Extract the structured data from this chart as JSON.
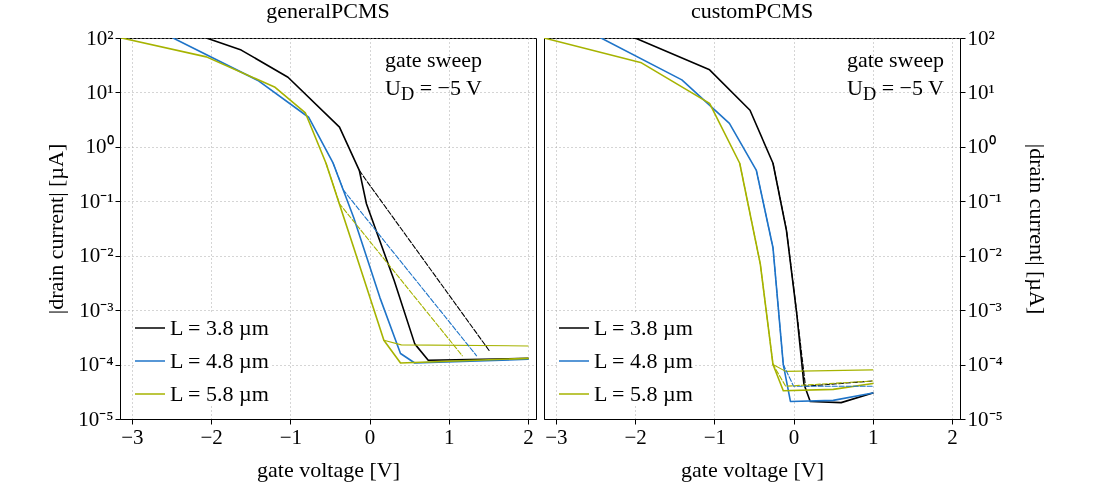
{
  "chart_data": [
    {
      "type": "line",
      "title": "generalPCMS",
      "xlabel": "gate voltage [V]",
      "ylabel": "|drain current| [µA]",
      "log": true,
      "grid": true,
      "legend": "bottom left",
      "xlim": [
        -3.15,
        2.1
      ],
      "ylim": [
        1e-05,
        100
      ],
      "xticks": [
        -3,
        -2,
        -1,
        0,
        1,
        2
      ],
      "yticks": [
        {
          "value": 1e-05,
          "label": "10⁻⁵"
        },
        {
          "value": 0.0001,
          "label": "10⁻⁴"
        },
        {
          "value": 0.001,
          "label": "10⁻³"
        },
        {
          "value": 0.01,
          "label": "10⁻²"
        },
        {
          "value": 0.1,
          "label": "10⁻¹"
        },
        {
          "value": 1,
          "label": "10⁰"
        },
        {
          "value": 10,
          "label": "10¹"
        },
        {
          "value": 100,
          "label": "10²"
        }
      ],
      "annotations": [
        "gate sweep",
        "U$_{D}$ = −5 V"
      ],
      "series": [
        {
          "name": "L = 3.8 µm",
          "color": "#000000",
          "line_style": "solid",
          "x": [
            -2.06,
            -1.62,
            -1.03,
            -0.38,
            -0.13,
            -0.04,
            0.31,
            0.57,
            0.74,
            2
          ],
          "values": [
            100,
            60,
            19,
            2.3,
            0.37,
            0.09,
            0.0035,
            0.00024,
            0.00012,
            0.00013
          ]
        },
        {
          "name": "L = 4.8 µm",
          "color": "#1f74c8",
          "line_style": "solid",
          "x": [
            -2.48,
            -1.41,
            -0.77,
            -0.46,
            -0.2,
            0.13,
            0.39,
            0.57,
            2
          ],
          "values": [
            100,
            16.6,
            3.5,
            0.5,
            0.05,
            0.0017,
            0.00016,
            0.000107,
            0.000125
          ]
        },
        {
          "name": "L = 5.8 µm",
          "color": "#a6b300",
          "line_style": "solid",
          "x": [
            -3.13,
            -2.06,
            -1.2,
            -0.81,
            -0.55,
            -0.2,
            0.18,
            0.39,
            2
          ],
          "values": [
            100,
            45,
            12.6,
            4.2,
            0.5,
            0.014,
            0.00028,
            0.000107,
            0.00013
          ]
        },
        {
          "color": "#a6b300",
          "line_style": "solid",
          "x": [
            0.18,
            0.4,
            2
          ],
          "values": [
            0.00028,
            0.00023,
            0.00022
          ]
        },
        {
          "color": "#000000",
          "line_style": "dashed",
          "x": [
            -0.13,
            -0.04,
            1.51
          ],
          "values": [
            0.37,
            0.24,
            0.00018
          ]
        },
        {
          "color": "#1f74c8",
          "line_style": "dashed",
          "x": [
            -0.46,
            -0.33,
            1.35
          ],
          "values": [
            0.5,
            0.16,
            0.000145
          ]
        },
        {
          "color": "#a6b300",
          "line_style": "dashed",
          "x": [
            -0.55,
            -0.38,
            1.17
          ],
          "values": [
            0.5,
            0.09,
            0.000145
          ]
        }
      ]
    },
    {
      "type": "line",
      "title": "customPCMS",
      "xlabel": "gate voltage [V]",
      "ylabel": "|drain current| [µA]",
      "log": true,
      "grid": true,
      "legend": "bottom left",
      "xlim": [
        -3.15,
        2.1
      ],
      "ylim": [
        1e-05,
        100
      ],
      "xticks": [
        -3,
        -2,
        -1,
        0,
        1,
        2
      ],
      "yticks": [
        {
          "value": 1e-05,
          "label": "10⁻⁵"
        },
        {
          "value": 0.0001,
          "label": "10⁻⁴"
        },
        {
          "value": 0.001,
          "label": "10⁻³"
        },
        {
          "value": 0.01,
          "label": "10⁻²"
        },
        {
          "value": 0.1,
          "label": "10⁻¹"
        },
        {
          "value": 1,
          "label": "10⁰"
        },
        {
          "value": 10,
          "label": "10¹"
        },
        {
          "value": 100,
          "label": "10²"
        }
      ],
      "annotations": [
        "gate sweep",
        "U$_{D}$ = −5 V"
      ],
      "series": [
        {
          "name": "L = 3.8 µm",
          "color": "#000000",
          "line_style": "solid",
          "x": [
            -2,
            -1.06,
            -0.55,
            -0.26,
            -0.09,
            0.04,
            0.13,
            0.21,
            0.6,
            1
          ],
          "values": [
            100,
            26,
            4.7,
            0.5,
            0.029,
            0.00085,
            4.4e-05,
            2.1e-05,
            2e-05,
            3e-05
          ]
        },
        {
          "name": "L = 4.8 µm",
          "color": "#1f74c8",
          "line_style": "solid",
          "x": [
            -2.43,
            -1.41,
            -0.81,
            -0.47,
            -0.26,
            -0.13,
            -0.04,
            0.5,
            1
          ],
          "values": [
            100,
            17,
            2.7,
            0.37,
            0.014,
            0.0001,
            2.1e-05,
            2.2e-05,
            3e-05
          ]
        },
        {
          "name": "L = 5.8 µm",
          "color": "#a6b300",
          "line_style": "solid",
          "x": [
            -3.15,
            -1.92,
            -1.06,
            -0.68,
            -0.42,
            -0.26,
            -0.13,
            0.5,
            1
          ],
          "values": [
            100,
            35,
            6.3,
            0.5,
            0.007,
            0.0001,
            3.3e-05,
            3.5e-05,
            4.5e-05
          ]
        },
        {
          "color": "#a6b300",
          "line_style": "solid",
          "x": [
            -0.26,
            -0.1,
            1
          ],
          "values": [
            0.0001,
            7.5e-05,
            8e-05
          ]
        },
        {
          "color": "#000000",
          "line_style": "dashed",
          "x": [
            -0.26,
            -0.09,
            0.04,
            0.15,
            1
          ],
          "values": [
            0.5,
            0.03,
            0.0009,
            4e-05,
            5e-05
          ]
        },
        {
          "color": "#1f74c8",
          "line_style": "dashed",
          "x": [
            -0.47,
            -0.26,
            -0.13,
            0,
            1
          ],
          "values": [
            0.37,
            0.014,
            0.0001,
            4e-05,
            4e-05
          ]
        },
        {
          "color": "#a6b300",
          "line_style": "dashed",
          "x": [
            -0.68,
            -0.42,
            -0.26,
            -0.1,
            1
          ],
          "values": [
            0.5,
            0.007,
            0.0001,
            4e-05,
            5e-05
          ]
        }
      ]
    }
  ]
}
